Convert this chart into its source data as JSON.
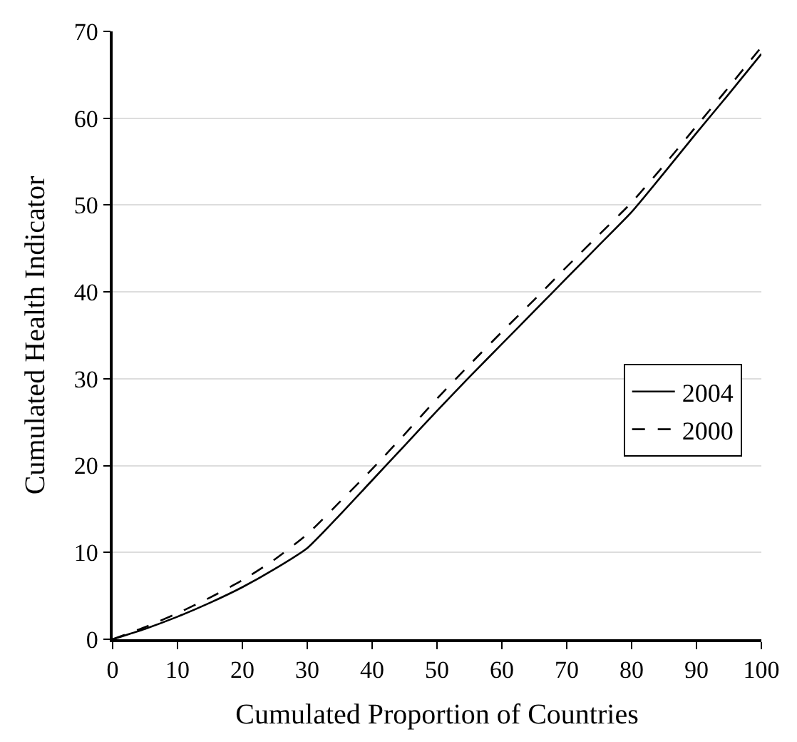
{
  "chart_data": {
    "type": "line",
    "xlabel": "Cumulated Proportion of Countries",
    "ylabel": "Cumulated Health Indicator",
    "x": [
      0,
      5,
      10,
      15,
      20,
      25,
      30,
      35,
      40,
      45,
      50,
      55,
      60,
      65,
      70,
      75,
      80,
      85,
      90,
      95,
      100
    ],
    "series": [
      {
        "name": "2004",
        "color": "#000000",
        "line_style": "solid",
        "values": [
          0,
          1.2,
          2.6,
          4.2,
          6.0,
          8.1,
          10.5,
          14.3,
          18.3,
          22.3,
          26.3,
          30.2,
          34.0,
          37.8,
          41.6,
          45.4,
          49.2,
          53.7,
          58.3,
          62.8,
          67.4
        ]
      },
      {
        "name": "2000",
        "color": "#000000",
        "line_style": "dashed",
        "values": [
          0,
          1.4,
          3.0,
          4.8,
          6.8,
          9.2,
          12.1,
          15.8,
          19.6,
          23.6,
          27.7,
          31.6,
          35.4,
          39.1,
          42.9,
          46.6,
          50.3,
          54.6,
          59.1,
          63.6,
          68.2
        ]
      }
    ],
    "xlim": [
      0,
      100
    ],
    "xticks": [
      0,
      10,
      20,
      30,
      40,
      50,
      60,
      70,
      80,
      90,
      100
    ],
    "ylim": [
      0,
      70
    ],
    "yticks": [
      0,
      10,
      20,
      30,
      40,
      50,
      60,
      70
    ],
    "grid": "y",
    "legend": "right",
    "marker": "none"
  }
}
